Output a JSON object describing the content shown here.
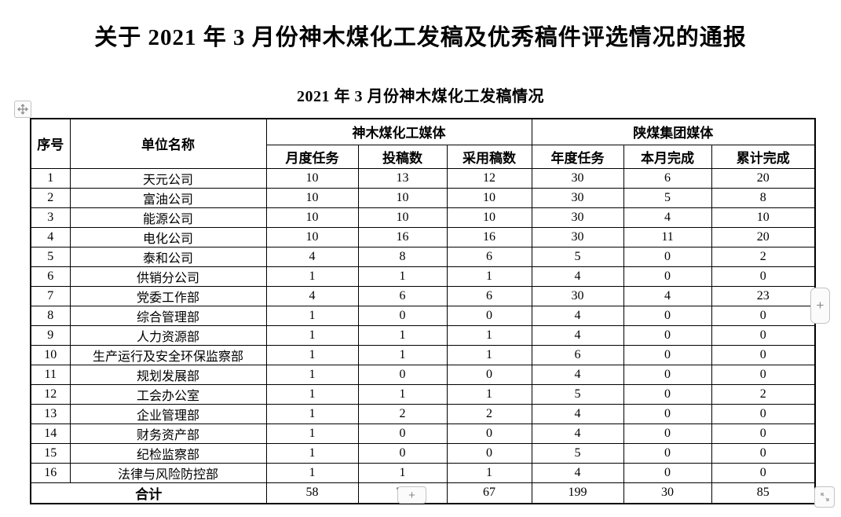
{
  "document": {
    "title": "关于 2021 年 3 月份神木煤化工发稿及优秀稿件评选情况的通报",
    "subtitle": "2021 年 3 月份神木煤化工发稿情况"
  },
  "table": {
    "col_headers": {
      "index": "序号",
      "unit": "单位名称"
    },
    "groups": [
      {
        "label": "神木煤化工媒体",
        "cols": [
          "月度任务",
          "投稿数",
          "采用稿数"
        ]
      },
      {
        "label": "陕煤集团媒体",
        "cols": [
          "年度任务",
          "本月完成",
          "累计完成"
        ]
      }
    ],
    "rows": [
      {
        "no": "1",
        "name": "天元公司",
        "values": [
          "10",
          "13",
          "12",
          "30",
          "6",
          "20"
        ]
      },
      {
        "no": "2",
        "name": "富油公司",
        "values": [
          "10",
          "10",
          "10",
          "30",
          "5",
          "8"
        ]
      },
      {
        "no": "3",
        "name": "能源公司",
        "values": [
          "10",
          "10",
          "10",
          "30",
          "4",
          "10"
        ]
      },
      {
        "no": "4",
        "name": "电化公司",
        "values": [
          "10",
          "16",
          "16",
          "30",
          "11",
          "20"
        ]
      },
      {
        "no": "5",
        "name": "泰和公司",
        "values": [
          "4",
          "8",
          "6",
          "5",
          "0",
          "2"
        ]
      },
      {
        "no": "6",
        "name": "供销分公司",
        "values": [
          "1",
          "1",
          "1",
          "4",
          "0",
          "0"
        ]
      },
      {
        "no": "7",
        "name": "党委工作部",
        "values": [
          "4",
          "6",
          "6",
          "30",
          "4",
          "23"
        ]
      },
      {
        "no": "8",
        "name": "综合管理部",
        "values": [
          "1",
          "0",
          "0",
          "4",
          "0",
          "0"
        ]
      },
      {
        "no": "9",
        "name": "人力资源部",
        "values": [
          "1",
          "1",
          "1",
          "4",
          "0",
          "0"
        ]
      },
      {
        "no": "10",
        "name": "生产运行及安全环保监察部",
        "values": [
          "1",
          "1",
          "1",
          "6",
          "0",
          "0"
        ]
      },
      {
        "no": "11",
        "name": "规划发展部",
        "values": [
          "1",
          "0",
          "0",
          "4",
          "0",
          "0"
        ]
      },
      {
        "no": "12",
        "name": "工会办公室",
        "values": [
          "1",
          "1",
          "1",
          "5",
          "0",
          "2"
        ]
      },
      {
        "no": "13",
        "name": "企业管理部",
        "values": [
          "1",
          "2",
          "2",
          "4",
          "0",
          "0"
        ]
      },
      {
        "no": "14",
        "name": "财务资产部",
        "values": [
          "1",
          "0",
          "0",
          "4",
          "0",
          "0"
        ]
      },
      {
        "no": "15",
        "name": "纪检监察部",
        "values": [
          "1",
          "0",
          "0",
          "5",
          "0",
          "0"
        ]
      },
      {
        "no": "16",
        "name": "法律与风险防控部",
        "values": [
          "1",
          "1",
          "1",
          "4",
          "0",
          "0"
        ]
      }
    ],
    "total": {
      "label": "合计",
      "values": [
        "58",
        "70",
        "67",
        "199",
        "30",
        "85"
      ]
    }
  },
  "controls": {
    "move_icon": "move-cross-icon",
    "insert_column_label": "+",
    "insert_row_label": "+",
    "resize_icon": "diagonal-resize-icon"
  }
}
